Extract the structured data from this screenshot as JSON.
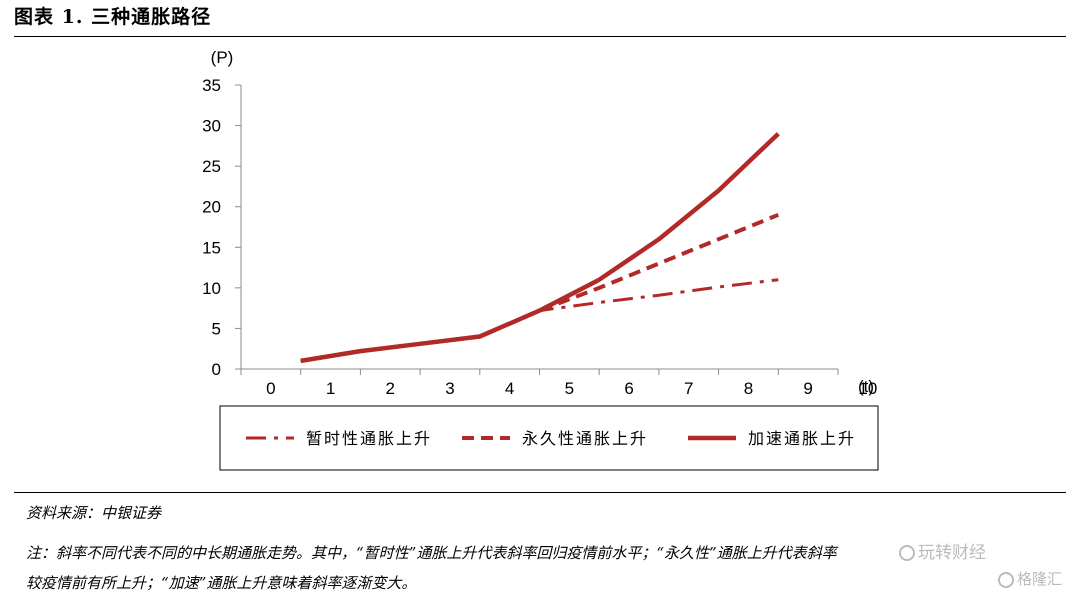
{
  "figure_title": "图表 1. 三种通胀路径",
  "source_text": "资料来源：中银证券",
  "note_line1": "注：斜率不同代表不同的中长期通胀走势。其中，“暂时性”通胀上升代表斜率回归疫情前水平；“永久性”通胀上升代表斜率",
  "note_line2": "较疫情前有所上升；“加速”通胀上升意味着斜率逐渐变大。",
  "watermark_1": "玩转财经",
  "watermark_2": "格隆汇",
  "colors": {
    "series": "#b22a28",
    "axis": "#8c8c8c",
    "text": "#000000"
  },
  "chart_data": {
    "type": "line",
    "ylabel": "(P)",
    "xlabel": "(t)",
    "ylim": [
      0,
      35
    ],
    "yticks": [
      0,
      5,
      10,
      15,
      20,
      25,
      30,
      35
    ],
    "xlim": [
      0,
      10
    ],
    "xticks": [
      0,
      1,
      2,
      3,
      4,
      5,
      6,
      7,
      8,
      9,
      10
    ],
    "grid": false,
    "legend": "bottom",
    "series": [
      {
        "name": "暂时性通胀上升",
        "style": "dashdot",
        "x": [
          1,
          2,
          3,
          4,
          5,
          6,
          7,
          8,
          9
        ],
        "y": [
          1,
          2.2,
          3.1,
          4,
          7.2,
          8.2,
          9.1,
          10.1,
          11
        ]
      },
      {
        "name": "永久性通胀上升",
        "style": "dashed",
        "x": [
          1,
          2,
          3,
          4,
          5,
          6,
          7,
          8,
          9
        ],
        "y": [
          1,
          2.2,
          3.1,
          4,
          7.2,
          10,
          13,
          16,
          19
        ]
      },
      {
        "name": "加速通胀上升",
        "style": "solid",
        "x": [
          1,
          2,
          3,
          4,
          5,
          6,
          7,
          8,
          9
        ],
        "y": [
          1,
          2.2,
          3.1,
          4,
          7.2,
          11,
          16,
          22,
          29
        ]
      }
    ]
  }
}
